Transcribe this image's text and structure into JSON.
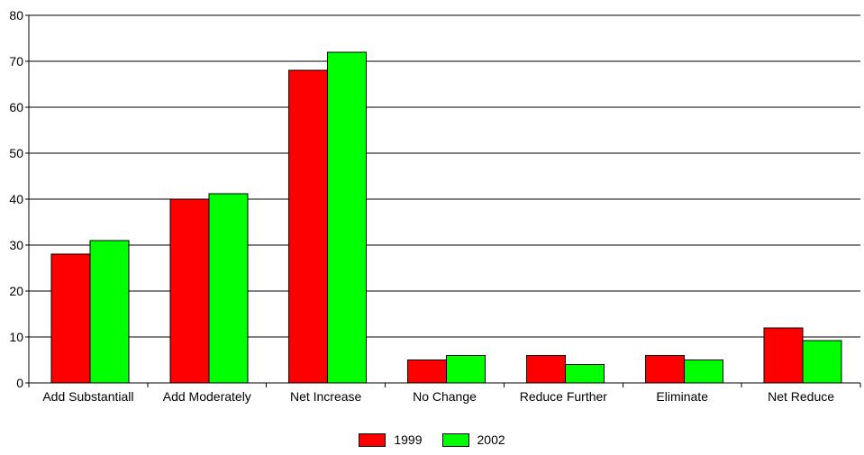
{
  "chart_data": {
    "type": "bar",
    "title": "",
    "xlabel": "",
    "ylabel": "",
    "ylim": [
      0,
      80
    ],
    "yticks": [
      0,
      10,
      20,
      30,
      40,
      50,
      60,
      70,
      80
    ],
    "grid": true,
    "legend_position": "bottom-center",
    "categories": [
      "Add Substantiall",
      "Add Moderately",
      "Net Increase",
      "No Change",
      "Reduce Further",
      "Eliminate",
      "Net Reduce"
    ],
    "series": [
      {
        "name": "1999",
        "color": "#ff0000",
        "values": [
          28,
          40,
          68,
          5,
          6,
          6,
          12
        ]
      },
      {
        "name": "2002",
        "color": "#00ff00",
        "values": [
          31,
          41.2,
          72,
          6,
          4,
          5,
          9.2
        ]
      }
    ]
  }
}
